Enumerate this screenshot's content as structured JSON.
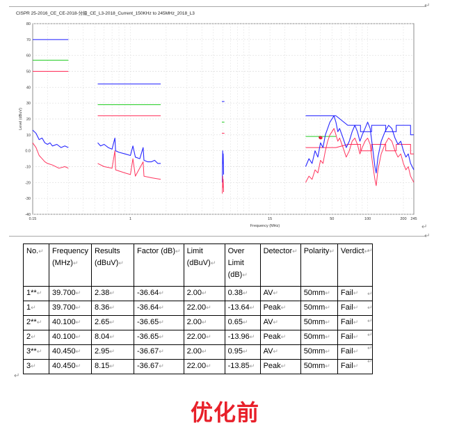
{
  "chart_data": {
    "type": "line",
    "title": "CISPR 25-2016_CE_CE-2018-分級_CE_L3-2018_Current_150KHz to 245MHz_2018_L3",
    "xlabel": "Frequency (MHz)",
    "ylabel": "Level (dBuV)",
    "xscale": "log",
    "xlim": [
      0.15,
      245
    ],
    "ylim": [
      -40,
      80
    ],
    "x_ticks": [
      0.15,
      1,
      15,
      50,
      100,
      200,
      245
    ],
    "x_tick_labels": [
      "0.15",
      "1",
      "15",
      "50",
      "100",
      "200",
      "245"
    ],
    "y_ticks": [
      80,
      70,
      60,
      50,
      40,
      30,
      20,
      10,
      0,
      -10,
      -20,
      -30,
      -40
    ],
    "y_tick_labels": [
      "80",
      "70",
      "60",
      "50",
      "40",
      "30",
      "20",
      "10",
      "0.0",
      "-10",
      "-20",
      "-30",
      "-40"
    ],
    "grid": true,
    "colors": {
      "peak": "#1a1aff",
      "avg": "#ff2a55",
      "quasi_peak_limit": "#22cc22",
      "marker": "#ff2a55"
    },
    "limits": [
      {
        "kind": "peak",
        "segments": [
          [
            0.15,
            0.3,
            70
          ],
          [
            0.53,
            1.8,
            42
          ],
          [
            5.9,
            6.2,
            31
          ],
          [
            30,
            54,
            22
          ]
        ]
      },
      {
        "kind": "quasi_peak",
        "segments": [
          [
            0.15,
            0.3,
            57
          ],
          [
            0.53,
            1.8,
            29
          ],
          [
            5.9,
            6.2,
            18
          ],
          [
            30,
            54,
            9
          ]
        ]
      },
      {
        "kind": "average",
        "segments": [
          [
            0.15,
            0.3,
            50
          ],
          [
            0.53,
            1.8,
            22
          ],
          [
            5.9,
            6.2,
            11
          ],
          [
            30,
            54,
            2
          ]
        ]
      }
    ],
    "limits_stepped": [
      {
        "kind": "peak",
        "points": [
          [
            54,
            22
          ],
          [
            68,
            16
          ],
          [
            87,
            16
          ],
          [
            87,
            12
          ],
          [
            108,
            12
          ],
          [
            108,
            16
          ],
          [
            142,
            16
          ],
          [
            142,
            12
          ],
          [
            174,
            12
          ],
          [
            174,
            16
          ],
          [
            230,
            16
          ],
          [
            230,
            10
          ],
          [
            245,
            10
          ]
        ]
      },
      {
        "kind": "average",
        "points": [
          [
            54,
            2
          ],
          [
            68,
            4
          ],
          [
            87,
            4
          ],
          [
            87,
            0
          ],
          [
            108,
            0
          ],
          [
            108,
            4
          ],
          [
            142,
            4
          ],
          [
            142,
            0
          ],
          [
            174,
            0
          ],
          [
            174,
            4
          ],
          [
            230,
            4
          ],
          [
            230,
            -2
          ],
          [
            245,
            -2
          ]
        ]
      }
    ],
    "series": [
      {
        "kind": "peak",
        "bands": [
          {
            "points": [
              [
                0.15,
                13
              ],
              [
                0.16,
                11
              ],
              [
                0.17,
                7
              ],
              [
                0.18,
                8
              ],
              [
                0.19,
                5
              ],
              [
                0.2,
                4
              ],
              [
                0.21,
                5
              ],
              [
                0.22,
                3
              ],
              [
                0.24,
                4
              ],
              [
                0.26,
                2
              ],
              [
                0.28,
                3
              ],
              [
                0.3,
                2
              ]
            ]
          },
          {
            "points": [
              [
                0.53,
                5
              ],
              [
                0.56,
                3
              ],
              [
                0.6,
                4
              ],
              [
                0.65,
                2
              ],
              [
                0.7,
                1
              ],
              [
                0.74,
                8
              ],
              [
                0.75,
                0
              ],
              [
                0.8,
                -1
              ],
              [
                0.9,
                -2
              ],
              [
                1.0,
                -3
              ],
              [
                1.05,
                3
              ],
              [
                1.1,
                -4
              ],
              [
                1.2,
                -5
              ],
              [
                1.28,
                2
              ],
              [
                1.3,
                -6
              ],
              [
                1.4,
                -7
              ],
              [
                1.5,
                -7
              ],
              [
                1.6,
                -6
              ],
              [
                1.7,
                -8
              ],
              [
                1.8,
                -8
              ]
            ]
          },
          {
            "points": [
              [
                5.95,
                -20
              ],
              [
                5.98,
                -5
              ],
              [
                6.0,
                0
              ],
              [
                6.02,
                -8
              ],
              [
                6.05,
                -2
              ],
              [
                6.1,
                -15
              ]
            ]
          },
          {
            "points": [
              [
                30,
                -10
              ],
              [
                32,
                -5
              ],
              [
                34,
                -8
              ],
              [
                36,
                0
              ],
              [
                38,
                -4
              ],
              [
                40,
                5
              ],
              [
                42,
                2
              ],
              [
                44,
                10
              ],
              [
                46,
                14
              ],
              [
                48,
                18
              ],
              [
                50,
                20
              ],
              [
                52,
                22
              ],
              [
                54,
                18
              ],
              [
                56,
                12
              ],
              [
                58,
                14
              ],
              [
                62,
                8
              ],
              [
                66,
                2
              ],
              [
                70,
                6
              ],
              [
                74,
                12
              ],
              [
                78,
                16
              ],
              [
                82,
                12
              ],
              [
                86,
                6
              ],
              [
                90,
                10
              ],
              [
                95,
                14
              ],
              [
                100,
                18
              ],
              [
                105,
                14
              ],
              [
                110,
                2
              ],
              [
                115,
                -10
              ],
              [
                118,
                -14
              ],
              [
                122,
                -4
              ],
              [
                130,
                6
              ],
              [
                140,
                12
              ],
              [
                150,
                16
              ],
              [
                160,
                14
              ],
              [
                170,
                8
              ],
              [
                180,
                4
              ],
              [
                190,
                6
              ],
              [
                200,
                0
              ],
              [
                210,
                -4
              ],
              [
                220,
                -2
              ],
              [
                230,
                -8
              ],
              [
                245,
                -12
              ]
            ]
          }
        ]
      },
      {
        "kind": "average",
        "bands": [
          {
            "points": [
              [
                0.15,
                5
              ],
              [
                0.16,
                2
              ],
              [
                0.17,
                -3
              ],
              [
                0.18,
                -5
              ],
              [
                0.19,
                -7
              ],
              [
                0.2,
                -8
              ],
              [
                0.22,
                -9
              ],
              [
                0.25,
                -11
              ],
              [
                0.28,
                -10
              ],
              [
                0.3,
                -11
              ]
            ]
          },
          {
            "points": [
              [
                0.53,
                -8
              ],
              [
                0.6,
                -10
              ],
              [
                0.7,
                -11
              ],
              [
                0.74,
                0
              ],
              [
                0.75,
                -12
              ],
              [
                0.9,
                -14
              ],
              [
                1.0,
                -15
              ],
              [
                1.05,
                -5
              ],
              [
                1.1,
                -16
              ],
              [
                1.28,
                -7
              ],
              [
                1.3,
                -16
              ],
              [
                1.5,
                -17
              ],
              [
                1.8,
                -18
              ]
            ]
          },
          {
            "points": [
              [
                5.95,
                -27
              ],
              [
                5.98,
                -20
              ],
              [
                6.0,
                -16
              ],
              [
                6.02,
                -23
              ],
              [
                6.05,
                -18
              ],
              [
                6.1,
                -26
              ]
            ]
          },
          {
            "points": [
              [
                30,
                -20
              ],
              [
                32,
                -16
              ],
              [
                34,
                -18
              ],
              [
                36,
                -12
              ],
              [
                38,
                -14
              ],
              [
                40,
                -6
              ],
              [
                42,
                -8
              ],
              [
                44,
                0
              ],
              [
                46,
                6
              ],
              [
                48,
                10
              ],
              [
                50,
                12
              ],
              [
                52,
                14
              ],
              [
                54,
                10
              ],
              [
                56,
                6
              ],
              [
                58,
                8
              ],
              [
                62,
                2
              ],
              [
                66,
                -4
              ],
              [
                70,
                0
              ],
              [
                74,
                6
              ],
              [
                78,
                8
              ],
              [
                82,
                4
              ],
              [
                86,
                -2
              ],
              [
                90,
                2
              ],
              [
                95,
                6
              ],
              [
                100,
                8
              ],
              [
                105,
                4
              ],
              [
                110,
                -8
              ],
              [
                115,
                -18
              ],
              [
                118,
                -22
              ],
              [
                122,
                -12
              ],
              [
                130,
                -2
              ],
              [
                140,
                4
              ],
              [
                150,
                8
              ],
              [
                160,
                6
              ],
              [
                170,
                0
              ],
              [
                180,
                -4
              ],
              [
                190,
                -2
              ],
              [
                200,
                -8
              ],
              [
                210,
                -12
              ],
              [
                220,
                -10
              ],
              [
                230,
                -16
              ],
              [
                245,
                -20
              ]
            ]
          }
        ]
      }
    ],
    "markers": [
      [
        39.7,
        8.36
      ],
      [
        40.1,
        8.04
      ],
      [
        40.45,
        8.15
      ]
    ]
  },
  "table": {
    "headers": [
      [
        "No."
      ],
      [
        "Frequency",
        "(MHz)"
      ],
      [
        "Results",
        "(dBuV)"
      ],
      [
        "Factor (dB)"
      ],
      [
        "Limit",
        "(dBuV)"
      ],
      [
        "Over",
        "Limit",
        "(dB)"
      ],
      [
        "Detector"
      ],
      [
        "Polarity"
      ],
      [
        "Verdict"
      ]
    ],
    "rows": [
      [
        "1**",
        "39.700",
        "2.38",
        "-36.64",
        "2.00",
        "0.38",
        "AV",
        "50mm",
        "Fail"
      ],
      [
        "1",
        "39.700",
        "8.36",
        "-36.64",
        "22.00",
        "-13.64",
        "Peak",
        "50mm",
        "Fail"
      ],
      [
        "2**",
        "40.100",
        "2.65",
        "-36.65",
        "2.00",
        "0.65",
        "AV",
        "50mm",
        "Fail"
      ],
      [
        "2",
        "40.100",
        "8.04",
        "-36.65",
        "22.00",
        "-13.96",
        "Peak",
        "50mm",
        "Fail"
      ],
      [
        "3**",
        "40.450",
        "2.95",
        "-36.67",
        "2.00",
        "0.95",
        "AV",
        "50mm",
        "Fail"
      ],
      [
        "3",
        "40.450",
        "8.15",
        "-36.67",
        "22.00",
        "-13.85",
        "Peak",
        "50mm",
        "Fail"
      ]
    ]
  },
  "caption": "优化前"
}
